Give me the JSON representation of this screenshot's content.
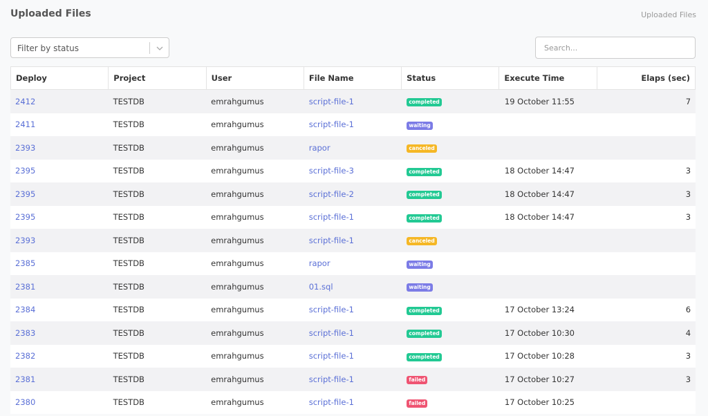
{
  "header": {
    "title": "Uploaded Files",
    "breadcrumb": "Uploaded Files"
  },
  "filter": {
    "placeholder": "Filter by status"
  },
  "search": {
    "placeholder": "Search..."
  },
  "table": {
    "columns": [
      "Deploy",
      "Project",
      "User",
      "File Name",
      "Status",
      "Execute Time",
      "Elaps (sec)"
    ],
    "rows": [
      {
        "deploy": "2412",
        "project": "TESTDB",
        "user": "emrahgumus",
        "file": "script-file-1",
        "status": "completed",
        "time": "19 October 11:55",
        "elaps": 7
      },
      {
        "deploy": "2411",
        "project": "TESTDB",
        "user": "emrahgumus",
        "file": "script-file-1",
        "status": "waiting"
      },
      {
        "deploy": "2393",
        "project": "TESTDB",
        "user": "emrahgumus",
        "file": "rapor",
        "status": "canceled"
      },
      {
        "deploy": "2395",
        "project": "TESTDB",
        "user": "emrahgumus",
        "file": "script-file-3",
        "status": "completed",
        "time": "18 October 14:47",
        "elaps": 3
      },
      {
        "deploy": "2395",
        "project": "TESTDB",
        "user": "emrahgumus",
        "file": "script-file-2",
        "status": "completed",
        "time": "18 October 14:47",
        "elaps": 3
      },
      {
        "deploy": "2395",
        "project": "TESTDB",
        "user": "emrahgumus",
        "file": "script-file-1",
        "status": "completed",
        "time": "18 October 14:47",
        "elaps": 3
      },
      {
        "deploy": "2393",
        "project": "TESTDB",
        "user": "emrahgumus",
        "file": "script-file-1",
        "status": "canceled"
      },
      {
        "deploy": "2385",
        "project": "TESTDB",
        "user": "emrahgumus",
        "file": "rapor",
        "status": "waiting"
      },
      {
        "deploy": "2381",
        "project": "TESTDB",
        "user": "emrahgumus",
        "file": "01.sql",
        "status": "waiting"
      },
      {
        "deploy": "2384",
        "project": "TESTDB",
        "user": "emrahgumus",
        "file": "script-file-1",
        "status": "completed",
        "time": "17 October 13:24",
        "elaps": 6
      },
      {
        "deploy": "2383",
        "project": "TESTDB",
        "user": "emrahgumus",
        "file": "script-file-1",
        "status": "completed",
        "time": "17 October 10:30",
        "elaps": 4
      },
      {
        "deploy": "2382",
        "project": "TESTDB",
        "user": "emrahgumus",
        "file": "script-file-1",
        "status": "completed",
        "time": "17 October 10:28",
        "elaps": 3
      },
      {
        "deploy": "2381",
        "project": "TESTDB",
        "user": "emrahgumus",
        "file": "script-file-1",
        "status": "failed",
        "time": "17 October 10:27",
        "elaps": 3
      },
      {
        "deploy": "2380",
        "project": "TESTDB",
        "user": "emrahgumus",
        "file": "script-file-1",
        "status": "failed",
        "time": "17 October 10:25"
      }
    ]
  }
}
